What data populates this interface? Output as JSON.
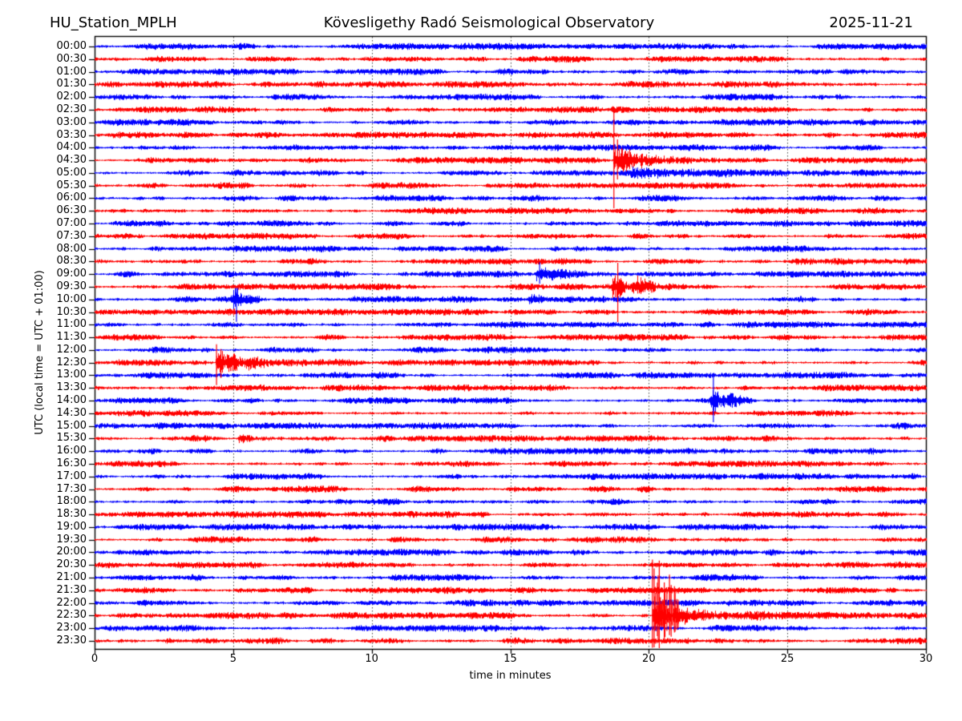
{
  "header": {
    "station": "HU_Station_MPLH",
    "observatory": "Kövesligethy Radó Seismological Observatory",
    "date": "2025-11-21"
  },
  "chart_data": {
    "type": "helicorder",
    "station": "HU_Station_MPLH",
    "title": "Kövesligethy Radó Seismological Observatory",
    "date": "2025-11-21",
    "xlabel": "time in minutes",
    "ylabel": "UTC (local time = UTC + 01:00)",
    "x_range": [
      0,
      30
    ],
    "x_ticks": [
      "0",
      "5",
      "10",
      "15",
      "20",
      "25",
      "30"
    ],
    "grid_minutes": [
      5,
      10,
      15,
      20,
      25
    ],
    "grid": true,
    "minutes_per_line": 30,
    "legend": "none",
    "colors": {
      "even_trace": "#0000ff",
      "odd_trace": "#ff0000",
      "text": "#000000",
      "grid": "#444444",
      "axis": "#000000",
      "background": "#ffffff"
    },
    "rows": [
      "00:00",
      "00:30",
      "01:00",
      "01:30",
      "02:00",
      "02:30",
      "03:00",
      "03:30",
      "04:00",
      "04:30",
      "05:00",
      "05:30",
      "06:00",
      "06:30",
      "07:00",
      "07:30",
      "08:00",
      "08:30",
      "09:00",
      "09:30",
      "10:00",
      "10:30",
      "11:00",
      "11:30",
      "12:00",
      "12:30",
      "13:00",
      "13:30",
      "14:00",
      "14:30",
      "15:00",
      "15:30",
      "16:00",
      "16:30",
      "17:00",
      "17:30",
      "18:00",
      "18:30",
      "19:00",
      "19:30",
      "20:00",
      "20:30",
      "21:00",
      "21:30",
      "22:00",
      "22:30",
      "23:00",
      "23:30"
    ],
    "events": [
      {
        "row": "04:30",
        "start_min": 18.7,
        "end_min": 19.4,
        "peak_amp": 12,
        "decay": 0.5,
        "spikes": [
          {
            "min": 18.74,
            "up": 64,
            "down": 60
          },
          {
            "min": 18.87,
            "up": 26,
            "down": 24
          }
        ]
      },
      {
        "row": "04:30",
        "start_min": 19.0,
        "end_min": 24.3,
        "peak_amp": 6,
        "decay": 2.0
      },
      {
        "row": "05:00",
        "start_min": 19.3,
        "end_min": 23.8,
        "peak_amp": 3.2,
        "decay": 2.6
      },
      {
        "row": "09:00",
        "start_min": 15.9,
        "end_min": 17.4,
        "peak_amp": 8,
        "decay": 0.5,
        "spikes": [
          {
            "min": 16.06,
            "up": 15,
            "down": 12
          }
        ]
      },
      {
        "row": "09:30",
        "start_min": 18.62,
        "end_min": 19.2,
        "peak_amp": 10,
        "decay": 0.35,
        "spikes": [
          {
            "min": 18.88,
            "up": 30,
            "down": 44
          }
        ]
      },
      {
        "row": "09:30",
        "start_min": 19.35,
        "end_min": 20.25,
        "peak_amp": 9,
        "decay": 0.45
      },
      {
        "row": "10:00",
        "start_min": 4.9,
        "end_min": 5.95,
        "peak_amp": 9,
        "decay": 0.45,
        "spikes": [
          {
            "min": 5.12,
            "up": 14,
            "down": 28
          }
        ]
      },
      {
        "row": "10:00",
        "start_min": 15.6,
        "end_min": 17.2,
        "peak_amp": 3.2,
        "decay": 0.9
      },
      {
        "row": "12:30",
        "start_min": 4.35,
        "end_min": 5.2,
        "peak_amp": 13,
        "decay": 0.6,
        "spikes": [
          {
            "min": 4.4,
            "up": 23,
            "down": 28
          },
          {
            "min": 4.56,
            "up": 17,
            "down": 19
          }
        ]
      },
      {
        "row": "12:30",
        "start_min": 4.9,
        "end_min": 10.8,
        "peak_amp": 5,
        "decay": 2.2
      },
      {
        "row": "14:00",
        "start_min": 22.18,
        "end_min": 23.0,
        "peak_amp": 11,
        "decay": 0.4,
        "spikes": [
          {
            "min": 22.33,
            "up": 30,
            "down": 27
          }
        ]
      },
      {
        "row": "14:00",
        "start_min": 22.85,
        "end_min": 23.7,
        "peak_amp": 5,
        "decay": 0.5
      },
      {
        "row": "15:30",
        "start_min": 5.15,
        "end_min": 5.75,
        "peak_amp": 4,
        "decay": 0.4
      },
      {
        "row": "22:30",
        "start_min": 20.12,
        "end_min": 21.3,
        "peak_amp": 15,
        "decay": 0.55,
        "spikes": [
          {
            "min": 20.13,
            "up": 70,
            "down": 40
          }
        ],
        "spike_cluster": {
          "start": 20.16,
          "end": 21.05,
          "count": 30,
          "max_up": 76,
          "max_down": 40
        }
      },
      {
        "row": "22:30",
        "start_min": 20.9,
        "end_min": 26.5,
        "peak_amp": 5.5,
        "decay": 2.4
      }
    ]
  }
}
